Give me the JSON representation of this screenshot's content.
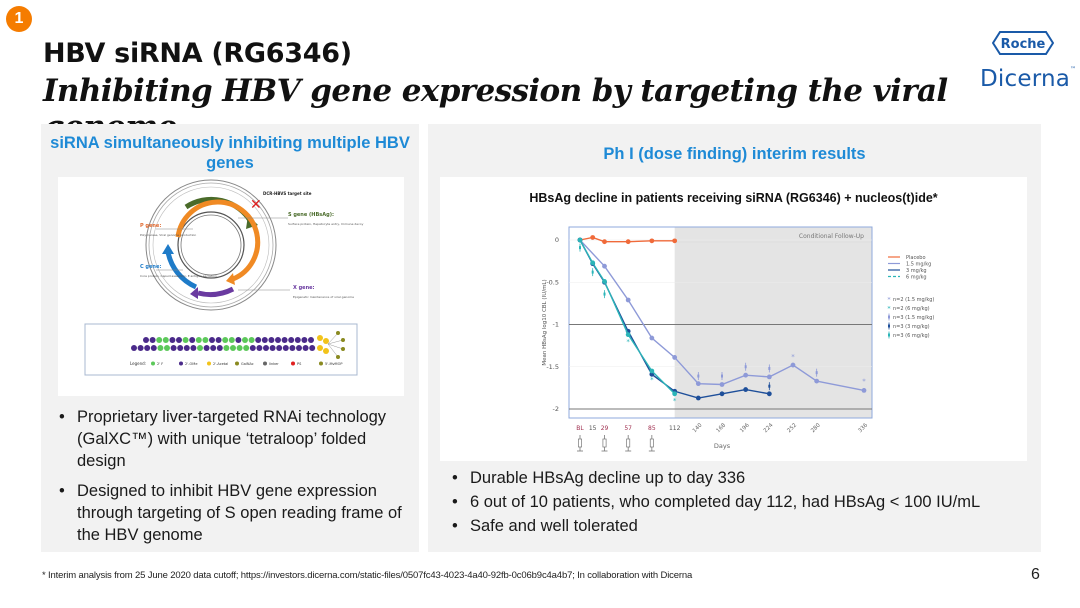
{
  "slide": {
    "badge_number": "1",
    "title": "HBV siRNA (RG6346)",
    "subtitle": "Inhibiting HBV gene expression by targeting the viral genome",
    "page_number": "6",
    "footnote": "* Interim analysis from 25 June 2020 data cutoff; https://investors.dicerna.com/static-files/0507fc43-4023-4a40-92fb-0c06b9c4a4b7; In collaboration with Dicerna"
  },
  "logos": {
    "roche": "Roche",
    "dicerna": "Dicerna",
    "dicerna_tm": "™"
  },
  "colors": {
    "accent_blue": "#1e8ad6",
    "badge_orange": "#f57c00",
    "placebo": "#f06a3a",
    "dose_1_5": "#8e9ad8",
    "dose_3": "#1e4f9a",
    "dose_6": "#2bb5b8"
  },
  "left_panel": {
    "heading": "siRNA simultaneously inhibiting multiple HBV genes",
    "diagram": {
      "target_label": "DCR-HBVS target site",
      "genes": [
        {
          "name": "P gene:",
          "desc": "Polymerase, Viral genome production"
        },
        {
          "name": "S gene (HBsAg):",
          "desc": "Surface protein, Hepatocyte entry, Immune decoy"
        },
        {
          "name": "C gene:",
          "desc": "Core protein, Capsid assembly, E antigen secretion"
        },
        {
          "name": "X gene:",
          "desc": "Epigenetic maintenance of viral genome"
        }
      ],
      "legend_label": "Legend:",
      "legend": [
        "2' F",
        "2'-OMe",
        "2'-Acetal",
        "GalNAc",
        "linker",
        "PS",
        "5'-MvMOP"
      ]
    },
    "bullets": [
      "Proprietary liver-targeted RNAi technology (GalXC™) with unique ‘tetraloop’ folded design",
      "Designed to inhibit HBV gene expression through targeting of S open reading frame of the HBV genome"
    ]
  },
  "right_panel": {
    "heading": "Ph I (dose finding) interim results",
    "chart_title": "HBsAg decline in patients receiving siRNA (RG6346) + nucleos(t)ide*",
    "bullets": [
      "Durable HBsAg decline up to day 336",
      "6 out of 10 patients, who completed day 112, had HBsAg < 100 IU/mL",
      "Safe and well tolerated"
    ]
  },
  "chart_data": {
    "type": "line",
    "title": "HBsAg decline in patients receiving siRNA (RG6346) + nucleos(t)ide*",
    "xlabel": "Days",
    "ylabel": "Mean HBsAg log10 CBL (IU/mL)",
    "ylim": [
      -2.1,
      0.15
    ],
    "xlim": [
      -10,
      345
    ],
    "yticks": [
      0,
      -0.5,
      -1,
      -1.5,
      -2
    ],
    "ytick_labels": [
      "0",
      "-0.5",
      "-1",
      "-1.5",
      "-2"
    ],
    "xticks": [
      {
        "day": 0,
        "label": "BL",
        "dose": true
      },
      {
        "day": 15,
        "label": "15",
        "dose": false
      },
      {
        "day": 29,
        "label": "29",
        "dose": true
      },
      {
        "day": 57,
        "label": "57",
        "dose": true
      },
      {
        "day": 85,
        "label": "85",
        "dose": true
      },
      {
        "day": 112,
        "label": "112",
        "dose": false
      },
      {
        "day": 140,
        "label": "140",
        "dose": false
      },
      {
        "day": 168,
        "label": "168",
        "dose": false
      },
      {
        "day": 196,
        "label": "196",
        "dose": false
      },
      {
        "day": 224,
        "label": "224",
        "dose": false
      },
      {
        "day": 252,
        "label": "252",
        "dose": false
      },
      {
        "day": 280,
        "label": "280",
        "dose": false
      },
      {
        "day": 336,
        "label": "336",
        "dose": false
      }
    ],
    "shaded_region": {
      "from_day": 112,
      "label": "Conditional Follow-Up"
    },
    "reference_lines": [
      -1,
      -2
    ],
    "grid": true,
    "legend_position": "right",
    "series": [
      {
        "name": "Placebo",
        "color": "#f06a3a",
        "dash": false,
        "x": [
          0,
          15,
          29,
          57,
          85,
          112
        ],
        "y": [
          0,
          0.03,
          -0.02,
          -0.02,
          -0.01,
          -0.01
        ]
      },
      {
        "name": "1.5 mg/kg",
        "color": "#8e9ad8",
        "dash": false,
        "x": [
          0,
          29,
          57,
          85,
          112,
          140,
          168,
          196,
          224,
          252,
          280,
          336
        ],
        "y": [
          0,
          -0.31,
          -0.71,
          -1.16,
          -1.39,
          -1.7,
          -1.71,
          -1.6,
          -1.62,
          -1.48,
          -1.67,
          -1.78
        ]
      },
      {
        "name": "3 mg/kg",
        "color": "#1e4f9a",
        "dash": false,
        "x": [
          0,
          15,
          29,
          57,
          85,
          112,
          140,
          168,
          196,
          224
        ],
        "y": [
          0,
          -0.28,
          -0.5,
          -1.08,
          -1.59,
          -1.79,
          -1.87,
          -1.82,
          -1.77,
          -1.82
        ]
      },
      {
        "name": "6 mg/kg",
        "color": "#2bb5b8",
        "dash": true,
        "x": [
          0,
          15,
          29,
          57,
          85,
          112
        ],
        "y": [
          0,
          -0.27,
          -0.49,
          -1.12,
          -1.55,
          -1.82
        ]
      }
    ],
    "annotations": [
      {
        "label": "n=2 (1.5 mg/kg)",
        "symbol": "star",
        "color": "#8e9ad8",
        "points": [
          [
            252,
            -1.38
          ],
          [
            336,
            -1.67
          ]
        ]
      },
      {
        "label": "n=2 (6 mg/kg)",
        "symbol": "star",
        "color": "#2bb5b8",
        "points": [
          [
            57,
            -1.2
          ],
          [
            85,
            -1.65
          ],
          [
            112,
            -1.9
          ]
        ]
      },
      {
        "label": "n=3 (1.5 mg/kg)",
        "symbol": "bar",
        "color": "#8e9ad8",
        "points": [
          [
            140,
            -1.61
          ],
          [
            168,
            -1.61
          ],
          [
            196,
            -1.5
          ],
          [
            224,
            -1.52
          ],
          [
            280,
            -1.57
          ]
        ]
      },
      {
        "label": "n=3 (3 mg/kg)",
        "symbol": "bar",
        "color": "#1e4f9a",
        "points": [
          [
            224,
            -1.73
          ]
        ]
      },
      {
        "label": "n=3 (6 mg/kg)",
        "symbol": "bar",
        "color": "#2bb5b8",
        "points": [
          [
            0,
            -0.09
          ],
          [
            15,
            -0.38
          ],
          [
            29,
            -0.64
          ]
        ]
      }
    ]
  }
}
